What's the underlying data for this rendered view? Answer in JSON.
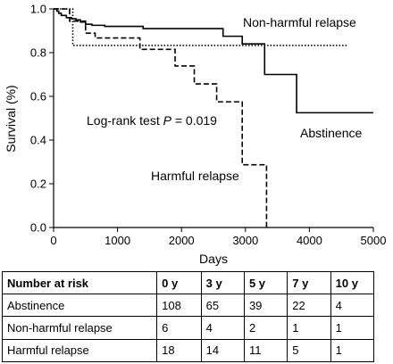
{
  "chart_data": {
    "type": "line",
    "step": true,
    "xlabel": "Days",
    "ylabel": "Survival (%)",
    "xlim": [
      0,
      5000
    ],
    "ylim": [
      0,
      1.0
    ],
    "xticks": [
      0,
      1000,
      2000,
      3000,
      4000,
      5000
    ],
    "yticks": [
      0.0,
      0.2,
      0.4,
      0.6,
      0.8,
      1.0
    ],
    "ytick_labels": [
      "0.0",
      "0.2",
      "0.4",
      "0.6",
      "0.8",
      "1.0"
    ],
    "grid": false,
    "annotation": {
      "prefix": "Log-rank test ",
      "italic": "P",
      "suffix": " = 0.019"
    },
    "series": [
      {
        "name": "Non-harmful relapse",
        "style": "dotted",
        "x": [
          0,
          150,
          300,
          4600
        ],
        "y": [
          1.0,
          1.0,
          0.833,
          0.833
        ]
      },
      {
        "name": "Abstinence",
        "style": "solid",
        "x": [
          0,
          50,
          80,
          120,
          200,
          280,
          350,
          420,
          500,
          600,
          800,
          1400,
          2650,
          2950,
          3300,
          3800,
          5000
        ],
        "y": [
          1.0,
          0.99,
          0.98,
          0.97,
          0.96,
          0.955,
          0.95,
          0.94,
          0.93,
          0.925,
          0.92,
          0.91,
          0.875,
          0.84,
          0.7,
          0.525,
          0.525
        ]
      },
      {
        "name": "Harmful relapse",
        "style": "dashed",
        "x": [
          0,
          250,
          300,
          500,
          650,
          1350,
          1900,
          2200,
          2550,
          2950,
          3330
        ],
        "y": [
          1.0,
          0.944,
          0.944,
          0.889,
          0.867,
          0.815,
          0.739,
          0.657,
          0.575,
          0.287,
          0.0
        ]
      }
    ],
    "risk_table": {
      "header": [
        "Number at risk",
        "0 y",
        "3 y",
        "5 y",
        "7 y",
        "10 y"
      ],
      "rows": [
        [
          "Abstinence",
          "108",
          "65",
          "39",
          "22",
          "4"
        ],
        [
          "Non-harmful relapse",
          "6",
          "4",
          "2",
          "1",
          "1"
        ],
        [
          "Harmful relapse",
          "18",
          "14",
          "11",
          "5",
          "1"
        ]
      ]
    }
  }
}
